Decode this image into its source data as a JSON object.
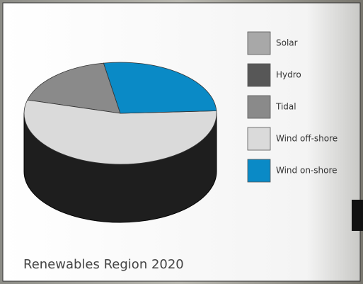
{
  "chart_data": {
    "type": "pie",
    "title": "Renewables Region 2020",
    "categories": [
      "Solar",
      "Hydro",
      "Tidal",
      "Wind off-shore",
      "Wind on-shore"
    ],
    "values": [
      0,
      0,
      18,
      55,
      27
    ],
    "colors": [
      "#a8a8a8",
      "#575757",
      "#8a8a8a",
      "#dadada",
      "#0a8ac6"
    ]
  }
}
